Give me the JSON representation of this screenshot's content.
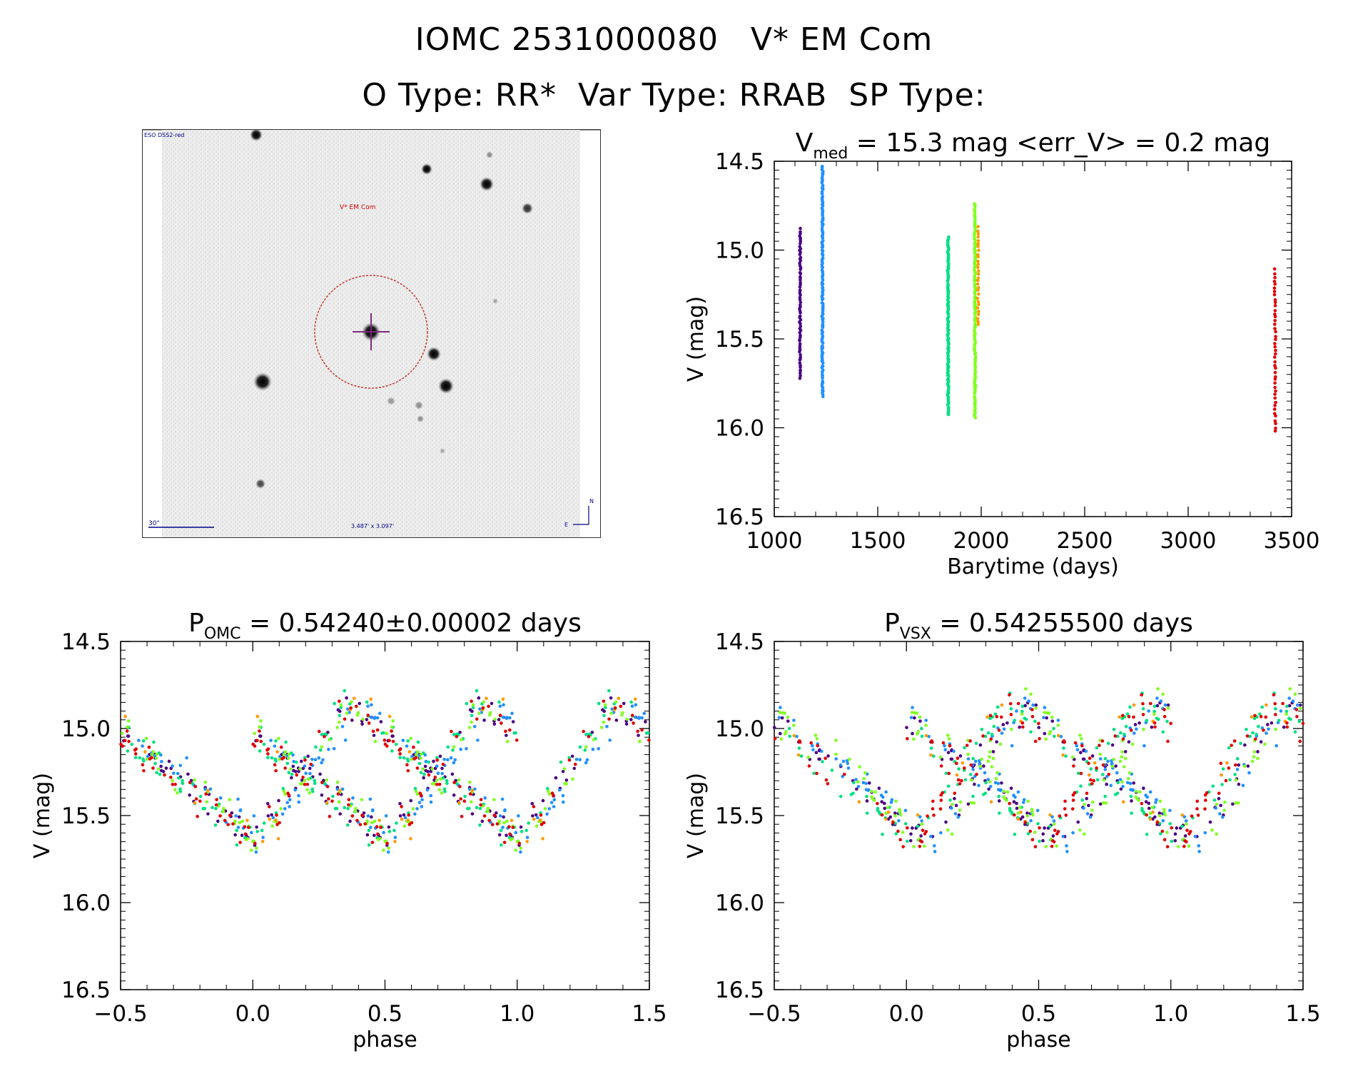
{
  "header": {
    "title_line1": "IOMC 2531000080   V* EM Com",
    "title_line2": "O Type: RR*  Var Type: RRAB  SP Type:"
  },
  "finder_chart": {
    "survey_label": "ESO DSS2-red",
    "object_label": "V* EM Com",
    "scale_label": "30\"",
    "fov_label": "3.487' x 3.097'",
    "north_label": "N",
    "east_label": "E"
  },
  "colors": {
    "dss_border": "#333333",
    "circle": "#c0392b",
    "crosshair": "#7a2a7a",
    "finder_text": "#00008b",
    "object_label": "#cc0000",
    "palette": [
      "#4b0082",
      "#2090ff",
      "#00e080",
      "#80ff20",
      "#ff9900",
      "#e00000"
    ]
  },
  "chart_data": [
    {
      "type": "scatter",
      "id": "lightcurve",
      "title_main": "V",
      "title_sub": "med",
      "title_rest": " = 15.3 mag <err_V> = 0.2 mag",
      "xlabel": "Barytime (days)",
      "ylabel": "V (mag)",
      "xlim": [
        1000,
        3500
      ],
      "ylim": [
        16.5,
        14.5
      ],
      "xticks": [
        "1000",
        "1500",
        "2000",
        "2500",
        "3000",
        "3500"
      ],
      "yticks": [
        "14.5",
        "15.0",
        "15.5",
        "16.0",
        "16.5"
      ],
      "groups": [
        {
          "x": 1125,
          "ymin": 14.88,
          "ymax": 15.72,
          "n": 70,
          "color_index": 0
        },
        {
          "x": 1233,
          "ymin": 14.53,
          "ymax": 15.82,
          "n": 150,
          "color_index": 1
        },
        {
          "x": 1840,
          "ymin": 14.93,
          "ymax": 15.93,
          "n": 130,
          "color_index": 2
        },
        {
          "x": 1970,
          "ymin": 14.74,
          "ymax": 15.94,
          "n": 140,
          "color_index": 3
        },
        {
          "x": 1985,
          "ymin": 14.87,
          "ymax": 15.42,
          "n": 30,
          "color_index": 4
        },
        {
          "x": 3420,
          "ymin": 15.11,
          "ymax": 16.02,
          "n": 45,
          "color_index": 5
        }
      ]
    },
    {
      "type": "scatter",
      "id": "phase_omc",
      "title_main": "P",
      "title_sub": "OMC",
      "title_rest": " = 0.54240±0.00002 days",
      "xlabel": "phase",
      "ylabel": "V (mag)",
      "xlim": [
        -0.5,
        1.5
      ],
      "ylim": [
        16.5,
        14.5
      ],
      "xticks": [
        "−0.5",
        "0.0",
        "0.5",
        "1.0",
        "1.5"
      ],
      "yticks": [
        "14.5",
        "15.0",
        "15.5",
        "16.0",
        "16.5"
      ],
      "model": {
        "max_phase": 0.35,
        "min_phase": 0.0,
        "bright": 14.85,
        "faint": 15.65,
        "scatter": 0.17
      },
      "phase_offsets": [
        0.1,
        0.3,
        0.0,
        0.2,
        0.35,
        0.05
      ]
    },
    {
      "type": "scatter",
      "id": "phase_vsx",
      "title_main": "P",
      "title_sub": "VSX",
      "title_rest": " = 0.54255500 days",
      "xlabel": "phase",
      "ylabel": "V (mag)",
      "xlim": [
        -0.5,
        1.5
      ],
      "ylim": [
        16.5,
        14.5
      ],
      "xticks": [
        "−0.5",
        "0.0",
        "0.5",
        "1.0",
        "1.5"
      ],
      "yticks": [
        "14.5",
        "15.0",
        "15.5",
        "16.0",
        "16.5"
      ],
      "model": {
        "max_phase": 0.35,
        "min_phase": 0.0,
        "bright": 14.85,
        "faint": 15.65,
        "scatter": 0.17
      },
      "phase_offsets": [
        0.7,
        0.85,
        0.2,
        0.9,
        0.05,
        0.25
      ]
    }
  ]
}
